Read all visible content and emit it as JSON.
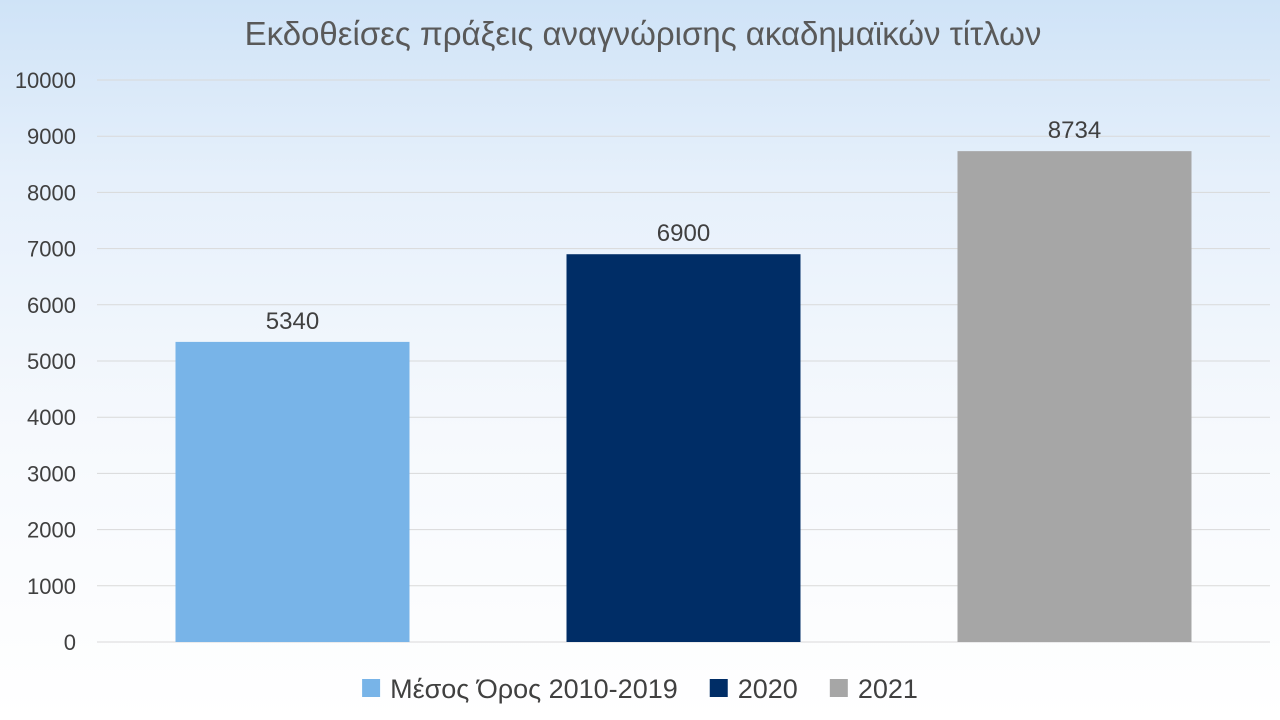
{
  "chart_data": {
    "type": "bar",
    "title": "Εκδοθείσες πράξεις αναγνώρισης ακαδημαϊκών τίτλων",
    "xlabel": "",
    "ylabel": "",
    "ylim": [
      0,
      10000
    ],
    "yticks": [
      0,
      1000,
      2000,
      3000,
      4000,
      5000,
      6000,
      7000,
      8000,
      9000,
      10000
    ],
    "grid": true,
    "legend_position": "bottom",
    "series": [
      {
        "name": "Μέσος Όρος 2010-2019",
        "value": 5340,
        "color": "#78b4e8"
      },
      {
        "name": "2020",
        "value": 6900,
        "color": "#002d66"
      },
      {
        "name": "2021",
        "value": 8734,
        "color": "#a6a6a6"
      }
    ]
  }
}
